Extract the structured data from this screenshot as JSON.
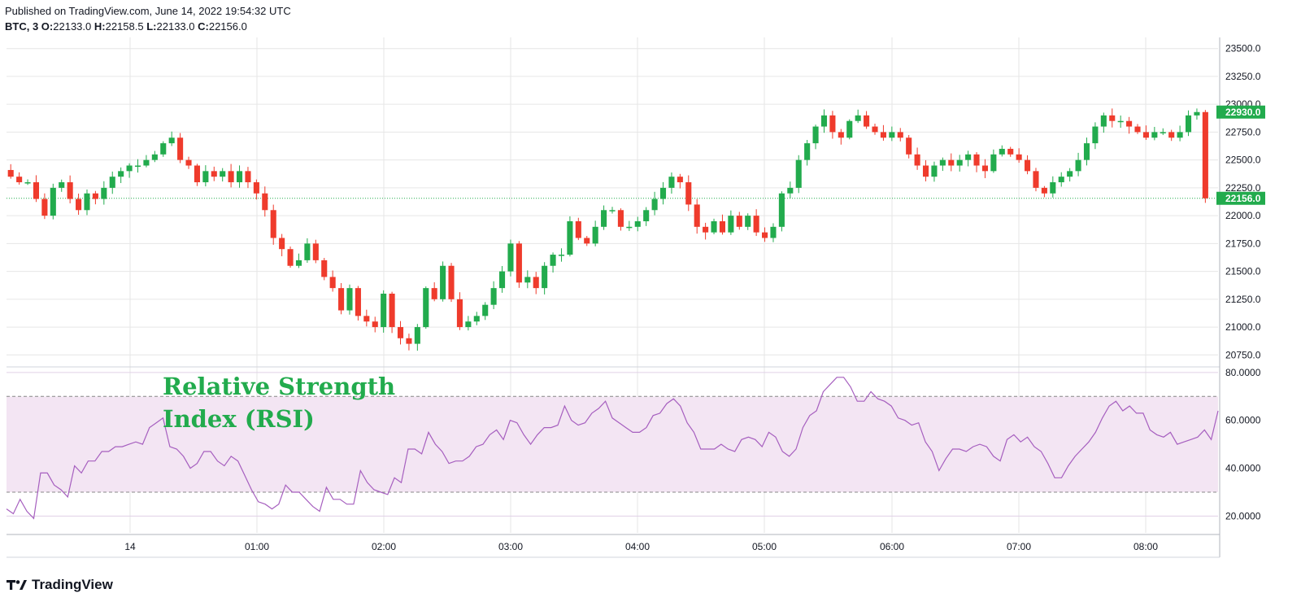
{
  "header": {
    "published": "Published on TradingView.com, June 14, 2022 19:54:32 UTC",
    "symbol": "BTC, 3",
    "open_label": "O:",
    "open": "22133.0",
    "high_label": "H:",
    "high": "22158.5",
    "low_label": "L:",
    "low": "22133.0",
    "close_label": "C:",
    "close": "22156.0"
  },
  "annotation": {
    "rsi_title": "Relative Strength Index (RSI)"
  },
  "footer": {
    "brand": "TradingView",
    "logo_icon": "tradingview-logo-icon"
  },
  "colors": {
    "up": "#22ab4d",
    "down": "#ef3b2c",
    "rsi_line": "#a65fbf",
    "rsi_band": "#f3e5f3",
    "grid": "#e6e6e6"
  },
  "chart_data": [
    {
      "type": "candlestick",
      "symbol": "BTC",
      "interval": "3",
      "x_tick_labels": [
        "14",
        "01:00",
        "02:00",
        "03:00",
        "04:00",
        "05:00",
        "06:00",
        "07:00",
        "08:00"
      ],
      "y_tick_labels": [
        "23500.0",
        "23250.0",
        "23000.0",
        "22750.0",
        "22500.0",
        "22250.0",
        "22000.0",
        "21750.0",
        "21500.0",
        "21250.0",
        "21000.0",
        "20750.0"
      ],
      "ylim": [
        20650,
        23600
      ],
      "price_badges": [
        "22930.0",
        "22156.0"
      ],
      "last_price": 22156,
      "close_path": [
        22410,
        22350,
        22300,
        22300,
        22150,
        22000,
        22250,
        22300,
        22150,
        22050,
        22200,
        22150,
        22250,
        22350,
        22400,
        22450,
        22450,
        22500,
        22550,
        22650,
        22700,
        22500,
        22450,
        22300,
        22400,
        22350,
        22400,
        22300,
        22400,
        22300,
        22200,
        22050,
        21800,
        21700,
        21550,
        21600,
        21750,
        21600,
        21450,
        21350,
        21150,
        21350,
        21100,
        21050,
        21000,
        21300,
        21000,
        20900,
        20850,
        21000,
        21350,
        21250,
        21550,
        21250,
        21000,
        21050,
        21100,
        21200,
        21350,
        21500,
        21750,
        21400,
        21450,
        21350,
        21550,
        21650,
        21650,
        21950,
        21800,
        21750,
        21900,
        22050,
        22050,
        21900,
        21900,
        21950,
        22050,
        22150,
        22250,
        22350,
        22300,
        22100,
        21900,
        21850,
        21950,
        21850,
        22000,
        21900,
        22000,
        21850,
        21800,
        21900,
        22200,
        22250,
        22500,
        22650,
        22800,
        22900,
        22750,
        22700,
        22850,
        22900,
        22800,
        22750,
        22700,
        22750,
        22700,
        22550,
        22450,
        22350,
        22450,
        22500,
        22450,
        22500,
        22550,
        22450,
        22400,
        22550,
        22600,
        22550,
        22500,
        22400,
        22250,
        22200,
        22300,
        22350,
        22400,
        22500,
        22650,
        22800,
        22900,
        22850,
        22850,
        22800,
        22750,
        22700,
        22750,
        22750,
        22700,
        22750,
        22900,
        22930,
        22156
      ]
    },
    {
      "type": "line",
      "name": "RSI",
      "y_tick_labels": [
        "80.0000",
        "60.0000",
        "40.0000",
        "20.0000"
      ],
      "ylim": [
        13,
        82
      ],
      "band": [
        30,
        70
      ],
      "values": [
        23,
        21,
        27,
        22,
        19,
        38,
        38,
        33,
        31,
        28,
        41,
        38,
        43,
        43,
        47,
        47,
        49,
        49,
        50,
        51,
        50,
        57,
        59,
        61,
        49,
        48,
        45,
        40,
        42,
        47,
        47,
        43,
        41,
        45,
        43,
        37,
        31,
        26,
        25,
        23,
        25,
        33,
        30,
        30,
        27,
        24,
        22,
        32,
        27,
        27,
        25,
        25,
        39,
        34,
        31,
        30,
        29,
        36,
        34,
        48,
        48,
        46,
        55,
        50,
        47,
        42,
        43,
        43,
        45,
        49,
        50,
        54,
        56,
        52,
        60,
        59,
        54,
        50,
        54,
        57,
        57,
        58,
        66,
        60,
        58,
        59,
        63,
        65,
        68,
        61,
        59,
        57,
        55,
        55,
        57,
        62,
        63,
        67,
        69,
        66,
        59,
        55,
        48,
        48,
        48,
        50,
        48,
        47,
        52,
        53,
        52,
        49,
        55,
        53,
        47,
        45,
        48,
        57,
        62,
        64,
        72,
        75,
        78,
        78,
        74,
        68,
        68,
        72,
        69,
        68,
        66,
        61,
        60,
        58,
        59,
        51,
        47,
        39,
        44,
        48,
        48,
        47,
        49,
        50,
        49,
        45,
        43,
        52,
        54,
        51,
        53,
        49,
        47,
        42,
        36,
        36,
        41,
        45,
        48,
        51,
        55,
        61,
        66,
        68,
        64,
        66,
        63,
        63,
        56,
        54,
        53,
        55,
        50,
        51,
        52,
        53,
        56,
        52,
        64
      ]
    }
  ]
}
